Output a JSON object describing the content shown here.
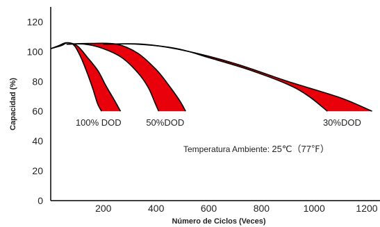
{
  "chart_data": {
    "type": "area",
    "title": "",
    "xlabel": "Número de Ciclos (Veces)",
    "ylabel": "Capacidad (%)",
    "xlim": [
      0,
      1250
    ],
    "ylim": [
      0,
      130
    ],
    "x_ticks": [
      200,
      400,
      600,
      800,
      1000,
      1200
    ],
    "y_ticks": [
      0,
      20,
      40,
      60,
      80,
      100,
      120
    ],
    "grid": false,
    "note": {
      "prefix": "Temperatura Ambiente: ",
      "value": "25℃（77℉）"
    },
    "fill_color": "#e8000b",
    "series": [
      {
        "name": "100% DOD",
        "upper": [
          [
            0,
            102
          ],
          [
            30,
            104
          ],
          [
            60,
            106
          ],
          [
            100,
            104
          ],
          [
            140,
            96
          ],
          [
            180,
            87
          ],
          [
            210,
            77
          ],
          [
            240,
            68
          ],
          [
            265,
            60
          ]
        ],
        "lower": [
          [
            0,
            102
          ],
          [
            40,
            104
          ],
          [
            65,
            106
          ],
          [
            90,
            104
          ],
          [
            115,
            96
          ],
          [
            140,
            85
          ],
          [
            160,
            75
          ],
          [
            178,
            65
          ],
          [
            193,
            60
          ]
        ]
      },
      {
        "name": "50%DOD",
        "upper": [
          [
            60,
            105
          ],
          [
            150,
            105.5
          ],
          [
            250,
            105
          ],
          [
            330,
            99
          ],
          [
            400,
            88
          ],
          [
            450,
            77
          ],
          [
            490,
            67
          ],
          [
            512,
            60
          ]
        ],
        "lower": [
          [
            60,
            105
          ],
          [
            130,
            105
          ],
          [
            200,
            102
          ],
          [
            270,
            96
          ],
          [
            330,
            86
          ],
          [
            370,
            76
          ],
          [
            395,
            66
          ],
          [
            410,
            60
          ]
        ]
      },
      {
        "name": "30%DOD",
        "upper": [
          [
            200,
            105
          ],
          [
            350,
            105
          ],
          [
            500,
            101
          ],
          [
            700,
            92
          ],
          [
            900,
            80
          ],
          [
            1100,
            69
          ],
          [
            1220,
            60
          ]
        ],
        "lower": [
          [
            200,
            105
          ],
          [
            330,
            105
          ],
          [
            480,
            102
          ],
          [
            600,
            96
          ],
          [
            750,
            88
          ],
          [
            900,
            78
          ],
          [
            980,
            70
          ],
          [
            1050,
            60
          ]
        ]
      }
    ]
  }
}
